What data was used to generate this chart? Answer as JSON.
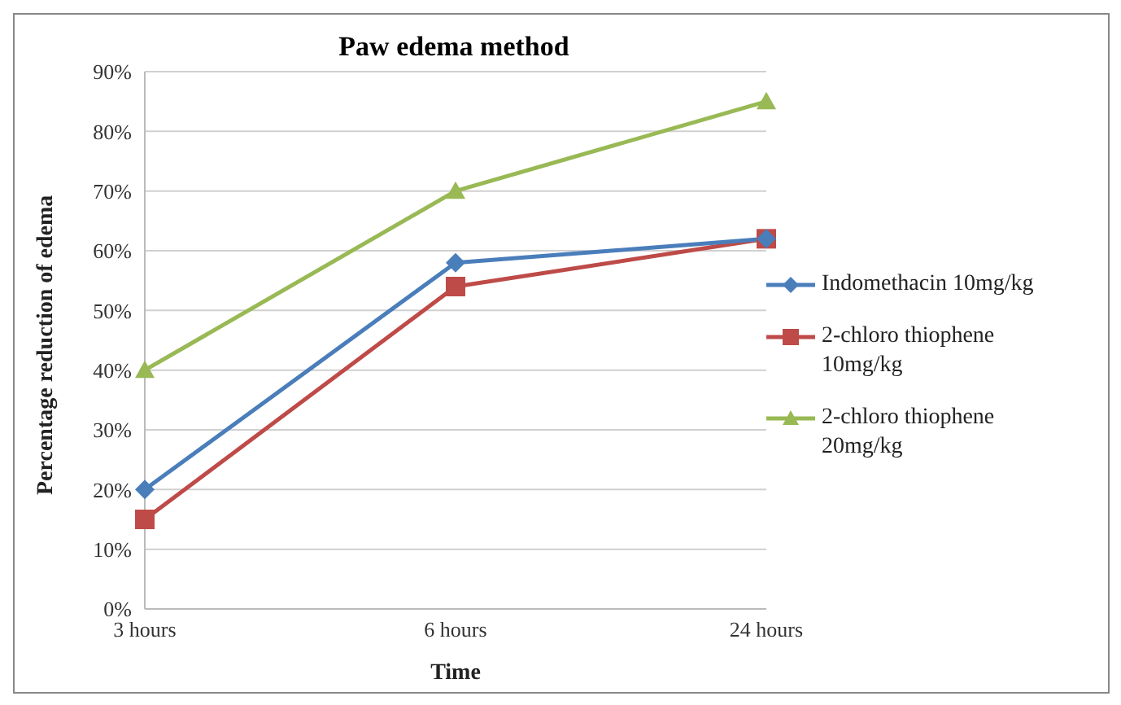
{
  "chart_data": {
    "type": "line",
    "title": "Paw edema method",
    "xlabel": "Time",
    "ylabel": "Percentage reduction of edema",
    "categories": [
      "3 hours",
      "6 hours",
      "24 hours"
    ],
    "series": [
      {
        "name": "Indomethacin 10mg/kg",
        "color": "#4a7ebb",
        "marker": "diamond",
        "values": [
          20,
          58,
          62
        ]
      },
      {
        "name": "2-chloro thiophene 10mg/kg",
        "color": "#be4b48",
        "marker": "square",
        "values": [
          15,
          54,
          62
        ]
      },
      {
        "name": "2-chloro thiophene 20mg/kg",
        "color": "#98b954",
        "marker": "triangle",
        "values": [
          40,
          70,
          85
        ]
      }
    ],
    "ylim": [
      0,
      90
    ],
    "yticks": [
      {
        "value": 0,
        "label": "0%"
      },
      {
        "value": 10,
        "label": "10%"
      },
      {
        "value": 20,
        "label": "20%"
      },
      {
        "value": 30,
        "label": "30%"
      },
      {
        "value": 40,
        "label": "40%"
      },
      {
        "value": 50,
        "label": "50%"
      },
      {
        "value": 60,
        "label": "60%"
      },
      {
        "value": 70,
        "label": "70%"
      },
      {
        "value": 80,
        "label": "80%"
      },
      {
        "value": 90,
        "label": "90%"
      }
    ],
    "grid": "y",
    "legend": "right"
  }
}
